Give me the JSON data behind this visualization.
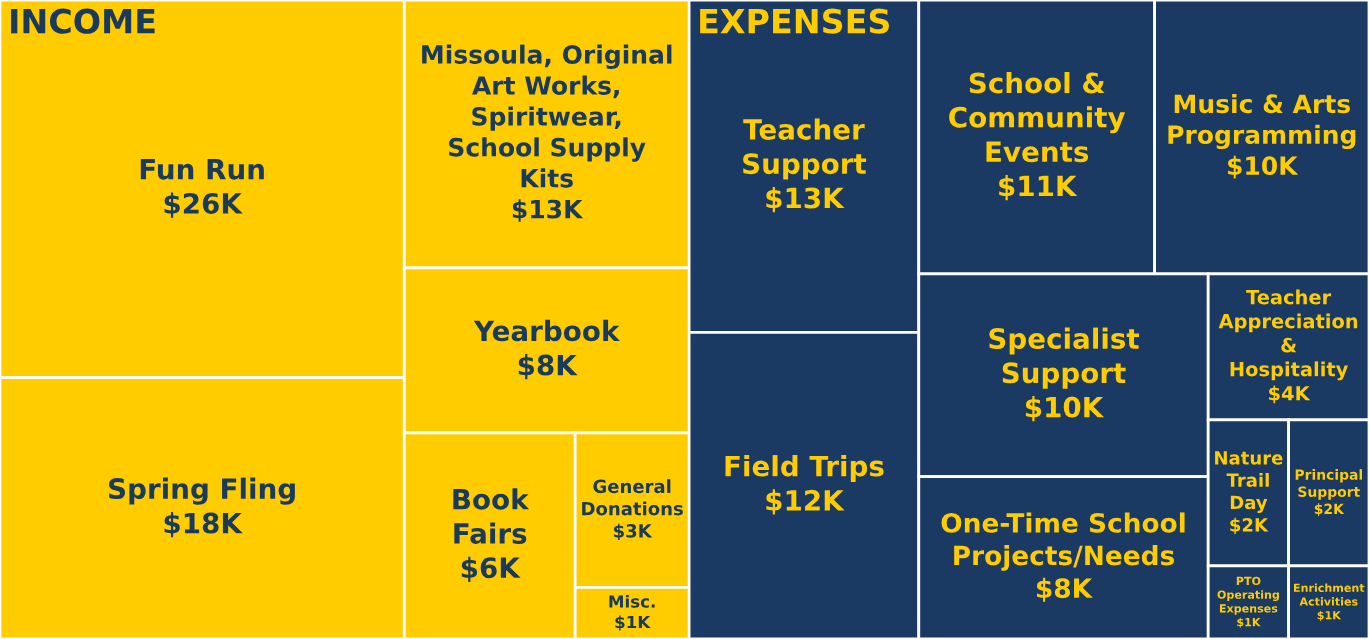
{
  "chart_data": [
    {
      "type": "other",
      "title": "INCOME",
      "categories": [
        "Fun Run",
        "Spring Fling",
        "Missoula, Original Art Works, Spiritwear, School Supply Kits",
        "Yearbook",
        "Book Fairs",
        "General Donations",
        "Misc."
      ],
      "values": [
        26,
        18,
        13,
        8,
        6,
        3,
        1
      ],
      "value_labels": [
        "$26K",
        "$18K",
        "$13K",
        "$8K",
        "$6K",
        "$3K",
        "$1K"
      ],
      "colors": [
        "#ffcc00",
        "#ffcc00",
        "#ffcc00",
        "#ffcc00",
        "#ffcc00",
        "#ffcc00",
        "#ffcc00"
      ]
    },
    {
      "type": "other",
      "title": "EXPENSES",
      "categories": [
        "Teacher Support",
        "Field Trips",
        "School & Community Events",
        "Music & Arts Programming",
        "Specialist Support",
        "One-Time School Projects/Needs",
        "Teacher Appreciation & Hospitality",
        "Nature Trail Day",
        "Principal Support",
        "PTO Operating Expenses",
        "Enrichment Activities"
      ],
      "values": [
        13,
        12,
        11,
        10,
        10,
        8,
        4,
        2,
        2,
        1,
        1
      ],
      "value_labels": [
        "$13K",
        "$12K",
        "$11K",
        "$10K",
        "$10K",
        "$8K",
        "$4K",
        "$2K",
        "$2K",
        "$1K",
        "$1K"
      ],
      "colors": [
        "#1b3a63",
        "#1b3a63",
        "#1b3a63",
        "#1b3a63",
        "#1b3a63",
        "#1b3a63",
        "#1b3a63",
        "#1b3a63",
        "#1b3a63",
        "#1b3a63",
        "#1b3a63"
      ]
    }
  ]
}
